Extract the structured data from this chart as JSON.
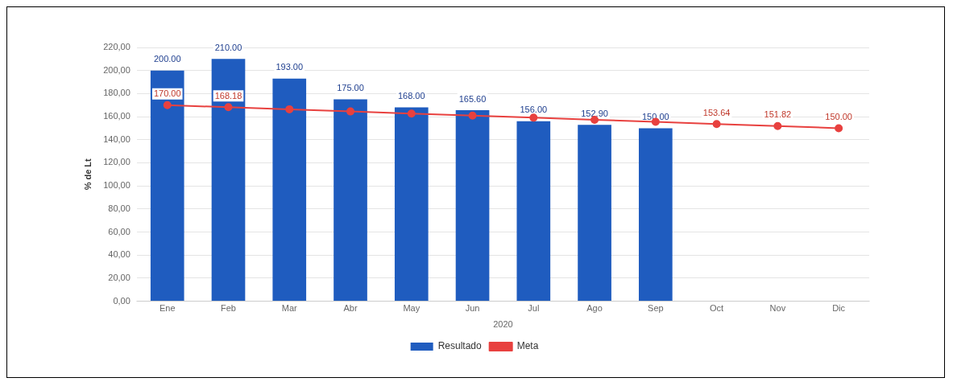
{
  "chart_data": {
    "type": "bar",
    "xlabel": "2020",
    "ylabel": "% de Lt",
    "categories": [
      "Ene",
      "Feb",
      "Mar",
      "Abr",
      "May",
      "Jun",
      "Jul",
      "Ago",
      "Sep",
      "Oct",
      "Nov",
      "Dic"
    ],
    "series": [
      {
        "name": "Resultado",
        "color": "#1f5cbf",
        "values": [
          200,
          210,
          193,
          175,
          168,
          165.6,
          156,
          152.9,
          150,
          null,
          null,
          null
        ],
        "value_labels": [
          "200.00",
          "210.00",
          "193.00",
          "175.00",
          "168.00",
          "165.60",
          "156.00",
          "152.90",
          "150.00",
          null,
          null,
          null
        ]
      },
      {
        "name": "Meta",
        "type": "line",
        "color": "#e8413f",
        "values": [
          170,
          168.18,
          166.4,
          164.5,
          162.7,
          160.9,
          159.1,
          157.3,
          155.5,
          153.64,
          151.82,
          150
        ],
        "value_labels": [
          "170.00",
          "168.18",
          null,
          null,
          null,
          null,
          null,
          null,
          null,
          "153.64",
          "151.82",
          "150.00"
        ]
      }
    ],
    "ylim": [
      0,
      220
    ],
    "yticks": [
      {
        "value": 0,
        "label": "0,00"
      },
      {
        "value": 20,
        "label": "20,00"
      },
      {
        "value": 40,
        "label": "40,00"
      },
      {
        "value": 60,
        "label": "60,00"
      },
      {
        "value": 80,
        "label": "80,00"
      },
      {
        "value": 100,
        "label": "100,00"
      },
      {
        "value": 120,
        "label": "120,00"
      },
      {
        "value": 140,
        "label": "140,00"
      },
      {
        "value": 160,
        "label": "160,00"
      },
      {
        "value": 180,
        "label": "180,00"
      },
      {
        "value": 200,
        "label": "200,00"
      },
      {
        "value": 220,
        "label": "220,00"
      }
    ],
    "grid": "y",
    "legend": "bottom",
    "marker": "circle",
    "line_style": "solid"
  }
}
